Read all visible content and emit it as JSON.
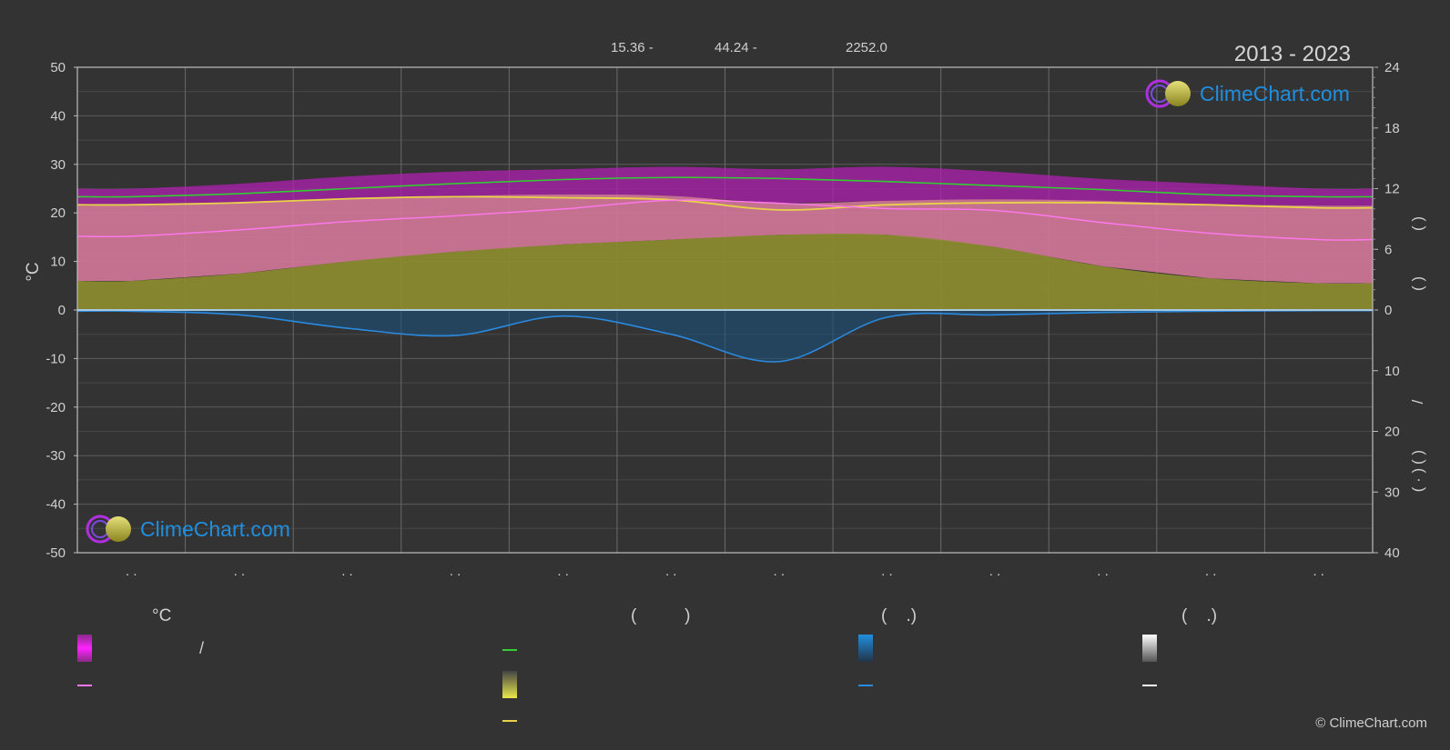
{
  "header": {
    "latitude": "15.36 -",
    "longitude": "44.24 -",
    "elevation": "2252.0",
    "period": "2013 - 2023"
  },
  "brand": {
    "logo_text": "ClimeChart.com",
    "copyright": "© ClimeChart.com"
  },
  "colors": {
    "background": "#333333",
    "temp_range": "#d4789a",
    "sunshine_area": "#8a8a30",
    "temp_extreme": "#b020b0",
    "daylight_line": "#33cc33",
    "sunshine_line": "#e8d24a",
    "mean_temp_line": "#ff77ee",
    "precip_line": "#2a8ae0",
    "precip_area": "#1b4f78"
  },
  "chart_data": {
    "type": "area",
    "x_tick_labels": [
      ". .",
      ". .",
      ". .",
      ". .",
      ". .",
      ". .",
      ". .",
      ". .",
      ". .",
      ". .",
      ". .",
      ". ."
    ],
    "ylabel_left": "°C",
    "ylim_left": [
      -50,
      50
    ],
    "left_ticks": [
      50,
      40,
      30,
      20,
      10,
      0,
      -10,
      -20,
      -30,
      -40,
      -50
    ],
    "right_upper_ticks": [
      24,
      18,
      12,
      6,
      0
    ],
    "right_upper_lim": [
      0,
      24
    ],
    "right_lower_ticks": [
      0,
      10,
      20,
      30,
      40
    ],
    "right_lower_lim": [
      0,
      40
    ],
    "right_labels": [
      "(   )",
      "(   )",
      "/",
      "(   )",
      "( · )"
    ],
    "months": [
      1,
      2,
      3,
      4,
      5,
      6,
      7,
      8,
      9,
      10,
      11,
      12
    ],
    "series": [
      {
        "key": "daylight",
        "values": [
          11.2,
          11.5,
          12.0,
          12.5,
          12.9,
          13.1,
          13.0,
          12.7,
          12.3,
          11.9,
          11.4,
          11.2
        ]
      },
      {
        "key": "sunshine",
        "values": [
          10.4,
          10.6,
          11.0,
          11.2,
          11.1,
          10.9,
          9.9,
          10.4,
          10.6,
          10.6,
          10.4,
          10.1
        ]
      },
      {
        "key": "temp_mean",
        "values": [
          15.2,
          16.5,
          18.2,
          19.4,
          20.8,
          22.6,
          22.0,
          20.9,
          20.5,
          18.0,
          15.8,
          14.5
        ]
      },
      {
        "key": "temp_range_high",
        "values": [
          21.5,
          22.0,
          23.0,
          23.5,
          23.8,
          23.5,
          22.0,
          22.5,
          22.8,
          22.5,
          21.8,
          21.5
        ]
      },
      {
        "key": "temp_range_low",
        "values": [
          6.0,
          7.5,
          10.0,
          12.0,
          13.5,
          14.5,
          15.5,
          15.5,
          13.0,
          9.0,
          6.5,
          5.5
        ]
      },
      {
        "key": "temp_extreme_high",
        "values": [
          25.0,
          26.0,
          27.5,
          28.5,
          29.0,
          29.5,
          29.0,
          29.5,
          28.5,
          27.0,
          26.0,
          25.0
        ]
      },
      {
        "key": "precip_mm",
        "values": [
          0.2,
          0.8,
          3.0,
          4.2,
          1.0,
          4.0,
          8.5,
          1.2,
          0.8,
          0.4,
          0.2,
          0.1
        ]
      }
    ]
  },
  "legend": {
    "col1_head": "°C",
    "col1_sep": "/",
    "col2_head": "(          )",
    "col3_head": "(    .)",
    "col4_head": "(    .)"
  }
}
